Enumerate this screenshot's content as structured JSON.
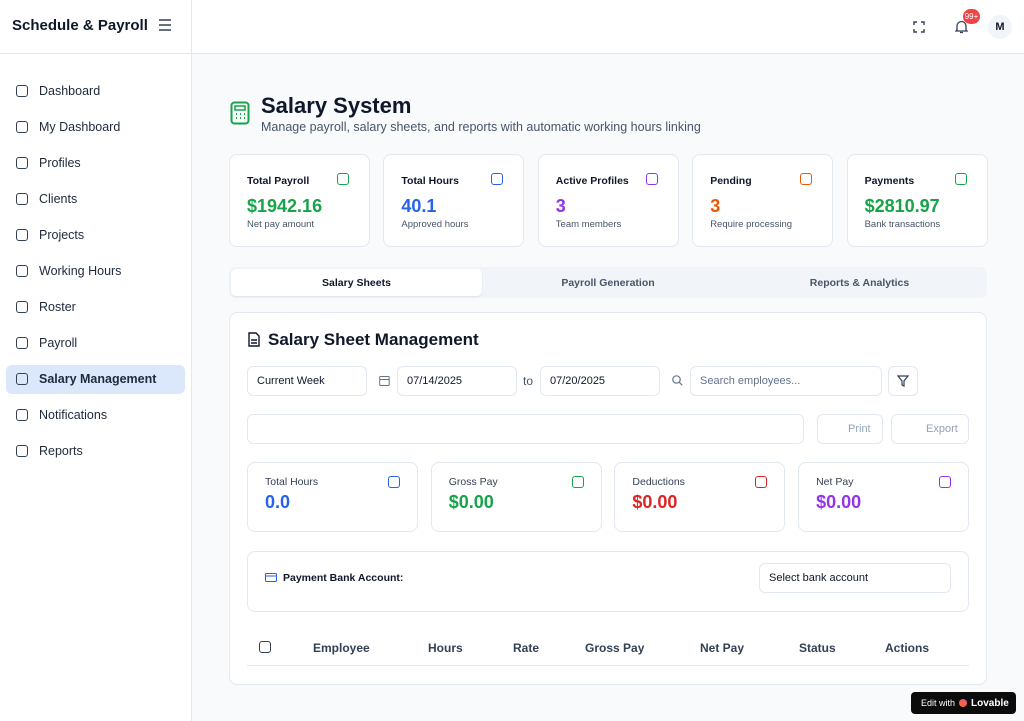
{
  "sidebar": {
    "brand": "Schedule & Payroll",
    "nav": [
      "Dashboard",
      "My Dashboard",
      "Profiles",
      "Clients",
      "Projects",
      "Working Hours",
      "Roster",
      "Payroll",
      "Salary Management",
      "Notifications",
      "Reports"
    ]
  },
  "header": {
    "notification_badge": "99+",
    "avatar": "M"
  },
  "page": {
    "title": "Salary System",
    "subtitle": "Manage payroll, salary sheets, and reports with automatic working hours linking"
  },
  "stats": [
    {
      "label": "Total Payroll",
      "value": "$1942.16",
      "note": "Net pay amount"
    },
    {
      "label": "Total Hours",
      "value": "40.1",
      "note": "Approved hours"
    },
    {
      "label": "Active Profiles",
      "value": "3",
      "note": "Team members"
    },
    {
      "label": "Pending",
      "value": "3",
      "note": "Require processing"
    },
    {
      "label": "Payments",
      "value": "$2810.97",
      "note": "Bank transactions"
    }
  ],
  "tabs": [
    "Salary Sheets",
    "Payroll Generation",
    "Reports & Analytics"
  ],
  "management": {
    "title": "Salary Sheet Management",
    "period": "Current Week",
    "date_from": "07/14/2025",
    "to": "to",
    "date_to": "07/20/2025",
    "search_placeholder": "Search employees...",
    "print": "Print",
    "export": "Export"
  },
  "summary": [
    {
      "label": "Total Hours",
      "value": "0.0"
    },
    {
      "label": "Gross Pay",
      "value": "$0.00"
    },
    {
      "label": "Deductions",
      "value": "$0.00"
    },
    {
      "label": "Net Pay",
      "value": "$0.00"
    }
  ],
  "bank": {
    "label": "Payment Bank Account:",
    "select": "Select bank account"
  },
  "table": {
    "columns": [
      "Employee",
      "Hours",
      "Rate",
      "Gross Pay",
      "Net Pay",
      "Status",
      "Actions"
    ]
  },
  "badge": {
    "edit_with": "Edit with",
    "brand": "Lovable"
  }
}
